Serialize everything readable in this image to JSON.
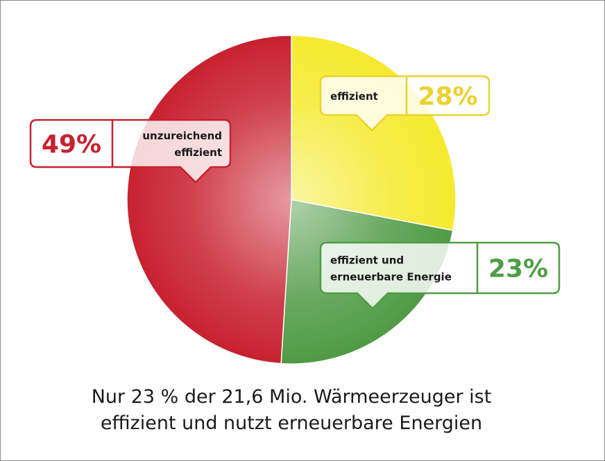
{
  "chart_data": {
    "type": "pie",
    "title": "Nur 23 % der 21,6 Mio. Wärmeerzeuger ist effizient und nutzt erneuerbare Energien",
    "title_lines": [
      "Nur 23 % der 21,6 Mio. Wärmeerzeuger ist",
      "effizient und nutzt erneuerbare Energien"
    ],
    "slices": [
      {
        "label_lines": [
          "effizient"
        ],
        "value": 28,
        "value_label": "28%",
        "color": "#f5ea2e",
        "label_color": "#ebd22e"
      },
      {
        "label_lines": [
          "effizient und",
          "erneuerbare Energie"
        ],
        "value": 23,
        "value_label": "23%",
        "color": "#4f9a45",
        "label_color": "#4e9e44"
      },
      {
        "label_lines": [
          "unzureichend",
          "effizient"
        ],
        "value": 49,
        "value_label": "49%",
        "color": "#c8202f",
        "label_color": "#c8202f"
      }
    ],
    "start": "top",
    "direction": "clockwise"
  }
}
